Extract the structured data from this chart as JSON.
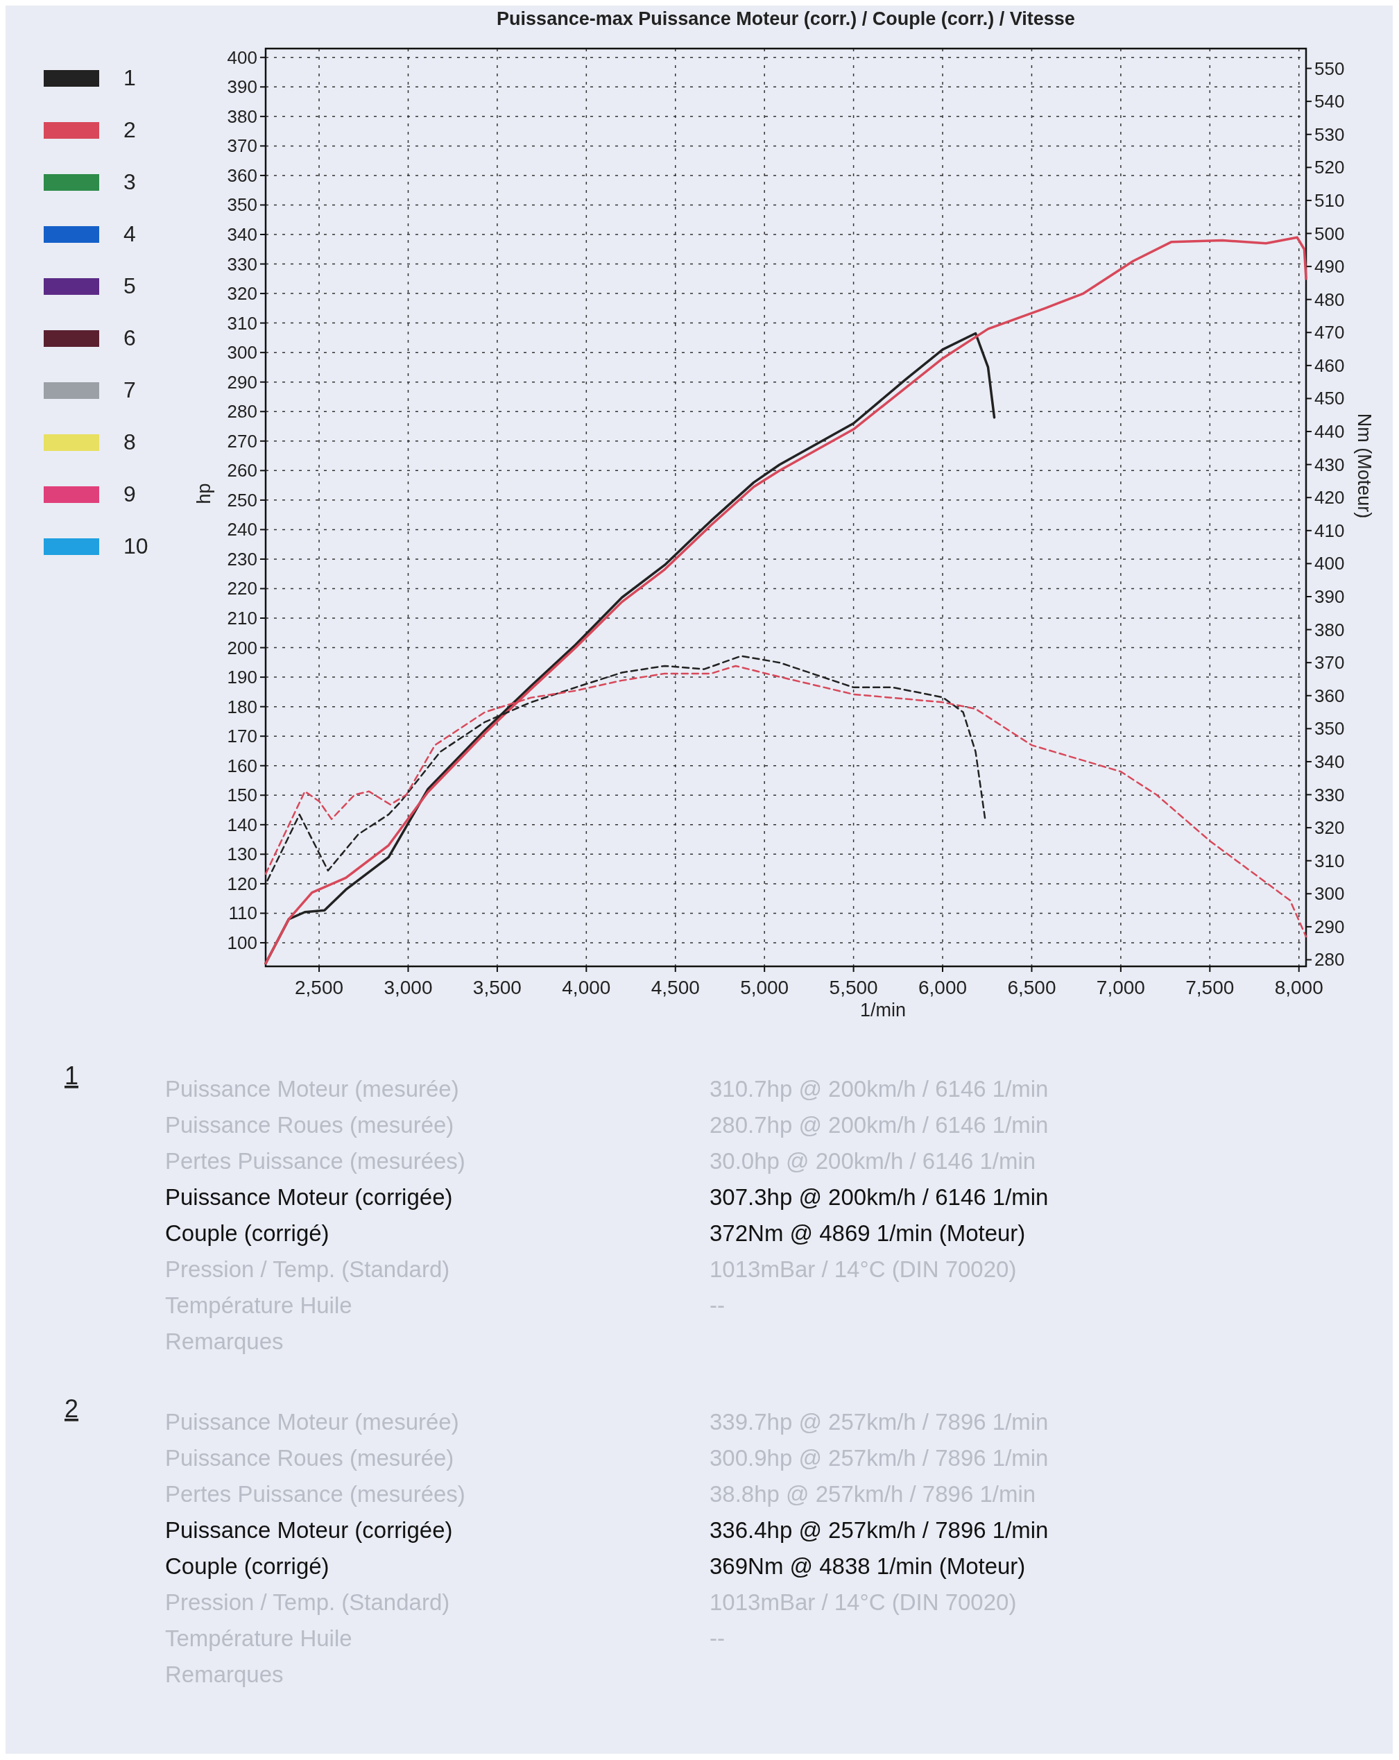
{
  "chart_data": {
    "type": "line",
    "title": "Puissance-max Puissance Moteur (corr.) / Couple (corr.) / Vitesse",
    "xlabel": "1/min",
    "ylabel": "hp",
    "y2label": "Nm (Moteur)",
    "xlim": [
      2200,
      8040
    ],
    "ylim": [
      92,
      403
    ],
    "y2lim": [
      278,
      556
    ],
    "xticks": [
      {
        "value": 2500,
        "label": "2,500"
      },
      {
        "value": 3000,
        "label": "3,000"
      },
      {
        "value": 3500,
        "label": "3,500"
      },
      {
        "value": 4000,
        "label": "4,000"
      },
      {
        "value": 4500,
        "label": "4,500"
      },
      {
        "value": 5000,
        "label": "5,000"
      },
      {
        "value": 5500,
        "label": "5,500"
      },
      {
        "value": 6000,
        "label": "6,000"
      },
      {
        "value": 6500,
        "label": "6,500"
      },
      {
        "value": 7000,
        "label": "7,000"
      },
      {
        "value": 7500,
        "label": "7,500"
      },
      {
        "value": 8000,
        "label": "8,000"
      }
    ],
    "yticks": [
      100,
      110,
      120,
      130,
      140,
      150,
      160,
      170,
      180,
      190,
      200,
      210,
      220,
      230,
      240,
      250,
      260,
      270,
      280,
      290,
      300,
      310,
      320,
      330,
      340,
      350,
      360,
      370,
      380,
      390,
      400
    ],
    "y2ticks": [
      280,
      290,
      300,
      310,
      320,
      330,
      340,
      350,
      360,
      370,
      380,
      390,
      400,
      410,
      420,
      430,
      440,
      450,
      460,
      470,
      480,
      490,
      500,
      510,
      520,
      530,
      540,
      550
    ],
    "grid": true,
    "legend": "left",
    "series": [
      {
        "name": "1",
        "color": "#222222",
        "line_style": "solid",
        "x": [
          2200,
          2330,
          2420,
          2530,
          2650,
          2890,
          3110,
          3430,
          3690,
          3940,
          4200,
          4440,
          4700,
          4940,
          5085,
          5500,
          5795,
          6000,
          6185,
          6255,
          6290
        ],
        "values": [
          93,
          108,
          110.4,
          111,
          118,
          129,
          152,
          172,
          187,
          201,
          217,
          228,
          243,
          256,
          262,
          276,
          291,
          301,
          306.5,
          295,
          278
        ]
      },
      {
        "name": "2",
        "color": "#d8485a",
        "line_style": "solid",
        "x": [
          2200,
          2330,
          2460,
          2650,
          2890,
          3110,
          3430,
          3690,
          3940,
          4200,
          4440,
          4700,
          4940,
          5085,
          5500,
          6000,
          6255,
          6575,
          6790,
          7070,
          7285,
          7570,
          7815,
          7990,
          8030,
          8040
        ],
        "values": [
          93,
          108,
          117,
          122,
          133,
          151,
          171,
          186,
          200,
          215.5,
          226.5,
          241.5,
          254.5,
          260,
          274,
          298,
          308,
          315,
          320,
          331,
          337.5,
          338,
          337,
          339,
          335,
          325
        ]
      },
      {
        "color": "#222222",
        "line_style": "dashed",
        "axis": "y2",
        "x": [
          2210,
          2390,
          2550,
          2720,
          2890,
          2960,
          3180,
          3430,
          3690,
          3940,
          4200,
          4440,
          4660,
          4869,
          5085,
          5500,
          5720,
          6000,
          6115,
          6185,
          6240
        ],
        "values": [
          304,
          324,
          307,
          318,
          324,
          328,
          343,
          352,
          358,
          362.5,
          367,
          369,
          368,
          372,
          370,
          362.5,
          362.5,
          359.5,
          355,
          343,
          322
        ]
      },
      {
        "color": "#d8485a",
        "line_style": "dashed",
        "axis": "y2",
        "x": [
          2200,
          2420,
          2500,
          2570,
          2700,
          2780,
          2900,
          2990,
          3150,
          3430,
          3690,
          3940,
          4200,
          4440,
          4700,
          4838,
          5085,
          5500,
          6000,
          6185,
          6500,
          7000,
          7200,
          7500,
          7800,
          7950,
          8040
        ],
        "values": [
          306,
          331,
          328,
          322.6,
          330,
          331,
          327,
          330,
          345,
          355,
          359.4,
          361.5,
          364.6,
          366.7,
          366.7,
          369,
          365.7,
          360.4,
          358,
          356,
          345,
          337,
          330,
          316,
          304,
          298,
          287
        ]
      },
      {
        "name": "3",
        "color": "#2e8b4a"
      },
      {
        "name": "4",
        "color": "#1560c8"
      },
      {
        "name": "5",
        "color": "#5b2a86"
      },
      {
        "name": "6",
        "color": "#5a2030"
      },
      {
        "name": "7",
        "color": "#9aa0a6"
      },
      {
        "name": "8",
        "color": "#e8e060"
      },
      {
        "name": "9",
        "color": "#e0407a"
      },
      {
        "name": "10",
        "color": "#20a0e0"
      }
    ],
    "annotations": [
      "1",
      "Puissance Moteur (mesurée)",
      "Puissance Roues (mesurée)",
      "Pertes Puissance (mesurées)",
      "Puissance Moteur (corrigée)",
      "Couple (corrigé)",
      "Pression / Temp. (Standard)",
      "Température Huile",
      "Remarques",
      "310.7hp @ 200km/h / 6146 1/min",
      "280.7hp @ 200km/h / 6146 1/min",
      "30.0hp @ 200km/h / 6146 1/min",
      "307.3hp @ 200km/h / 6146 1/min",
      "372Nm @ 4869 1/min (Moteur)",
      "1013mBar / 14°C   (DIN 70020)",
      "--",
      "2",
      "Puissance Moteur (mesurée)",
      "Puissance Roues (mesurée)",
      "Pertes Puissance (mesurées)",
      "Puissance Moteur (corrigée)",
      "Couple (corrigé)",
      "Pression / Temp. (Standard)",
      "Température Huile",
      "Remarques",
      "339.7hp @ 257km/h / 7896 1/min",
      "300.9hp @ 257km/h / 7896 1/min",
      "38.8hp @ 257km/h / 7896 1/min",
      "336.4hp @ 257km/h / 7896 1/min",
      "369Nm @ 4838 1/min (Moteur)",
      "1013mBar / 14°C   (DIN 70020)",
      "--"
    ]
  }
}
